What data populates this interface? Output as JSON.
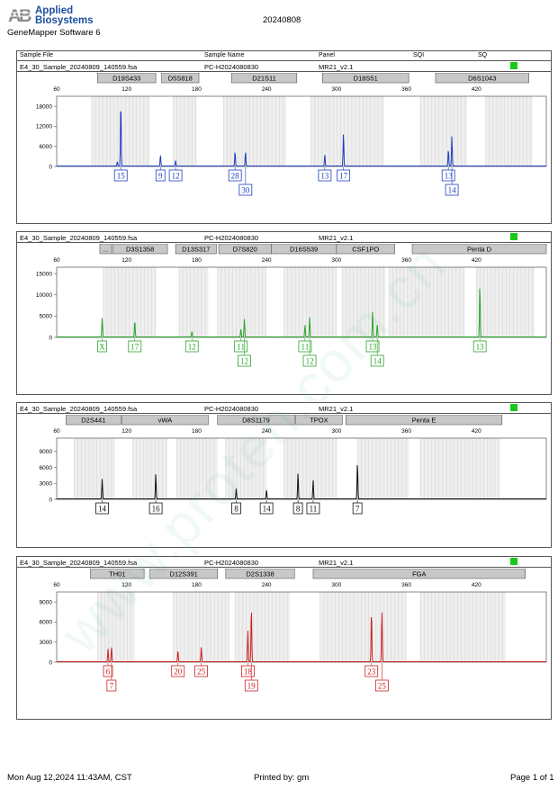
{
  "header": {
    "brand_line1": "Applied",
    "brand_line2": "Biosystems",
    "software": "GeneMapper Software 6",
    "run_date": "20240808"
  },
  "columns": {
    "sample_file": "Sample File",
    "sample_name": "Sample Name",
    "panel": "Panel",
    "sqi": "SQI",
    "sq": "SQ"
  },
  "footer": {
    "printed_date": "Mon Aug 12,2024 11:43AM, CST",
    "printed_by": "Printed by: gm",
    "page": "Page 1 of 1"
  },
  "watermark": "www.proteh.com.cn",
  "colors": {
    "blue": "#1f3fbf",
    "green": "#2aa52a",
    "black": "#111111",
    "red": "#cc2222",
    "status": "#19c919",
    "bin": "#d9d9d9",
    "marker": "#c8c8c8"
  },
  "chart_data": [
    {
      "type": "line",
      "dye": "blue",
      "sample_file": "E4_30_Sample_20240809_140559.fsa",
      "sample_name": "PC-H2024080830",
      "panel": "MR21_v2.1",
      "xlim": [
        60,
        480
      ],
      "xticks": [
        60,
        120,
        180,
        240,
        300,
        360,
        420
      ],
      "ylim": [
        0,
        21000
      ],
      "yticks": [
        0,
        6000,
        12000,
        18000
      ],
      "markers": [
        {
          "label": "D19S433",
          "range": [
            95,
            145
          ]
        },
        {
          "label": "D5S818",
          "range": [
            150,
            182
          ]
        },
        {
          "label": "D21S11",
          "range": [
            210,
            266
          ]
        },
        {
          "label": "D18S51",
          "range": [
            288,
            362
          ]
        },
        {
          "label": "D6S1043",
          "range": [
            385,
            465
          ]
        }
      ],
      "bins": [
        [
          90,
          140
        ],
        [
          160,
          180
        ],
        [
          203,
          257
        ],
        [
          278,
          341
        ],
        [
          372,
          412
        ],
        [
          428,
          468
        ]
      ],
      "peaks": [
        {
          "x": 112,
          "h": 1500
        },
        {
          "x": 115,
          "h": 19500
        },
        {
          "x": 149,
          "h": 3500
        },
        {
          "x": 162,
          "h": 1800
        },
        {
          "x": 213,
          "h": 4500
        },
        {
          "x": 222,
          "h": 4500
        },
        {
          "x": 290,
          "h": 3500
        },
        {
          "x": 306,
          "h": 10000
        },
        {
          "x": 396,
          "h": 5200
        },
        {
          "x": 399,
          "h": 9200
        }
      ],
      "alleles": [
        {
          "label": "15",
          "x": 115,
          "row": 0
        },
        {
          "label": "9",
          "x": 149,
          "row": 0
        },
        {
          "label": "12",
          "x": 162,
          "row": 0
        },
        {
          "label": "28",
          "x": 213,
          "row": 0
        },
        {
          "label": "30",
          "x": 222,
          "row": 1
        },
        {
          "label": "13",
          "x": 290,
          "row": 0
        },
        {
          "label": "17",
          "x": 306,
          "row": 0
        },
        {
          "label": "13",
          "x": 396,
          "row": 0
        },
        {
          "label": "14",
          "x": 399,
          "row": 1
        }
      ]
    },
    {
      "type": "line",
      "dye": "green",
      "sample_file": "E4_30_Sample_20240809_140559.fsa",
      "sample_name": "PC-H2024080830",
      "panel": "MR21_v2.1",
      "xlim": [
        60,
        480
      ],
      "xticks": [
        60,
        120,
        180,
        240,
        300,
        360,
        420
      ],
      "ylim": [
        0,
        16500
      ],
      "yticks": [
        0,
        5000,
        10000,
        15000
      ],
      "markers": [
        {
          "label": "...",
          "range": [
            97,
            107
          ]
        },
        {
          "label": "D3S1358",
          "range": [
            108,
            155
          ]
        },
        {
          "label": "D13S317",
          "range": [
            162,
            197
          ]
        },
        {
          "label": "D7S820",
          "range": [
            199,
            244
          ]
        },
        {
          "label": "D16S539",
          "range": [
            244,
            300
          ]
        },
        {
          "label": "CSF1PO",
          "range": [
            300,
            350
          ]
        },
        {
          "label": "Penta D",
          "range": [
            365,
            480
          ]
        }
      ],
      "bins": [
        [
          100,
          145
        ],
        [
          165,
          190
        ],
        [
          198,
          240
        ],
        [
          255,
          300
        ],
        [
          305,
          342
        ],
        [
          345,
          410
        ],
        [
          420,
          470
        ]
      ],
      "peaks": [
        {
          "x": 99,
          "h": 4500
        },
        {
          "x": 127,
          "h": 4000
        },
        {
          "x": 176,
          "h": 1500
        },
        {
          "x": 218,
          "h": 2000
        },
        {
          "x": 221,
          "h": 4300
        },
        {
          "x": 273,
          "h": 3000
        },
        {
          "x": 277,
          "h": 4800
        },
        {
          "x": 331,
          "h": 6000
        },
        {
          "x": 335,
          "h": 3200
        },
        {
          "x": 423,
          "h": 12500
        }
      ],
      "alleles": [
        {
          "label": "X",
          "x": 99,
          "row": 0
        },
        {
          "label": "17",
          "x": 127,
          "row": 0
        },
        {
          "label": "12",
          "x": 176,
          "row": 0
        },
        {
          "label": "11",
          "x": 218,
          "row": 0
        },
        {
          "label": "12",
          "x": 221,
          "row": 1
        },
        {
          "label": "11",
          "x": 273,
          "row": 0
        },
        {
          "label": "12",
          "x": 277,
          "row": 1
        },
        {
          "label": "13",
          "x": 331,
          "row": 0
        },
        {
          "label": "14",
          "x": 335,
          "row": 1
        },
        {
          "label": "13",
          "x": 423,
          "row": 0
        }
      ]
    },
    {
      "type": "line",
      "dye": "black",
      "sample_file": "E4_30_Sample_20240809_140559.fsa",
      "sample_name": "PC-H2024080830",
      "panel": "MR21_v2.1",
      "xlim": [
        60,
        480
      ],
      "xticks": [
        60,
        120,
        180,
        240,
        300,
        360,
        420
      ],
      "ylim": [
        0,
        11500
      ],
      "yticks": [
        0,
        3000,
        6000,
        9000
      ],
      "markers": [
        {
          "label": "D2S441",
          "range": [
            68,
            115
          ]
        },
        {
          "label": "vWA",
          "range": [
            116,
            190
          ]
        },
        {
          "label": "D8S1179",
          "range": [
            198,
            264
          ]
        },
        {
          "label": "TPOX",
          "range": [
            265,
            305
          ]
        },
        {
          "label": "Penta E",
          "range": [
            308,
            442
          ]
        }
      ],
      "bins": [
        [
          75,
          110
        ],
        [
          125,
          155
        ],
        [
          163,
          198
        ],
        [
          205,
          240
        ],
        [
          255,
          300
        ],
        [
          318,
          362
        ],
        [
          372,
          440
        ]
      ],
      "peaks": [
        {
          "x": 99,
          "h": 3800
        },
        {
          "x": 145,
          "h": 4800
        },
        {
          "x": 214,
          "h": 2000
        },
        {
          "x": 240,
          "h": 1800
        },
        {
          "x": 267,
          "h": 5000
        },
        {
          "x": 280,
          "h": 3600
        },
        {
          "x": 318,
          "h": 7000
        }
      ],
      "alleles": [
        {
          "label": "14",
          "x": 99,
          "row": 0
        },
        {
          "label": "16",
          "x": 145,
          "row": 0
        },
        {
          "label": "8",
          "x": 214,
          "row": 0
        },
        {
          "label": "14",
          "x": 240,
          "row": 0
        },
        {
          "label": "8",
          "x": 267,
          "row": 0
        },
        {
          "label": "11",
          "x": 280,
          "row": 0
        },
        {
          "label": "7",
          "x": 318,
          "row": 0
        }
      ]
    },
    {
      "type": "line",
      "dye": "red",
      "sample_file": "E4_30_Sample_20240809_140559.fsa",
      "sample_name": "PC-H2024080830",
      "panel": "MR21_v2.1",
      "xlim": [
        60,
        480
      ],
      "xticks": [
        60,
        120,
        180,
        240,
        300,
        360,
        420
      ],
      "ylim": [
        0,
        10500
      ],
      "yticks": [
        0,
        3000,
        6000,
        9000
      ],
      "markers": [
        {
          "label": "TH01",
          "range": [
            89,
            135
          ]
        },
        {
          "label": "D12S391",
          "range": [
            140,
            198
          ]
        },
        {
          "label": "D2S1338",
          "range": [
            205,
            264
          ]
        },
        {
          "label": "FGA",
          "range": [
            280,
            462
          ]
        }
      ],
      "bins": [
        [
          95,
          127
        ],
        [
          160,
          208
        ],
        [
          213,
          260
        ],
        [
          286,
          360
        ],
        [
          372,
          445
        ]
      ],
      "peaks": [
        {
          "x": 104,
          "h": 2000
        },
        {
          "x": 107,
          "h": 2300
        },
        {
          "x": 164,
          "h": 1800
        },
        {
          "x": 184,
          "h": 2300
        },
        {
          "x": 224,
          "h": 4800
        },
        {
          "x": 227,
          "h": 8300
        },
        {
          "x": 330,
          "h": 7700
        },
        {
          "x": 339,
          "h": 7800
        }
      ],
      "alleles": [
        {
          "label": "6",
          "x": 104,
          "row": 0
        },
        {
          "label": "7",
          "x": 107,
          "row": 1
        },
        {
          "label": "20",
          "x": 164,
          "row": 0
        },
        {
          "label": "25",
          "x": 184,
          "row": 0
        },
        {
          "label": "18",
          "x": 224,
          "row": 0
        },
        {
          "label": "19",
          "x": 227,
          "row": 1
        },
        {
          "label": "23",
          "x": 330,
          "row": 0
        },
        {
          "label": "25",
          "x": 339,
          "row": 1
        }
      ]
    }
  ]
}
